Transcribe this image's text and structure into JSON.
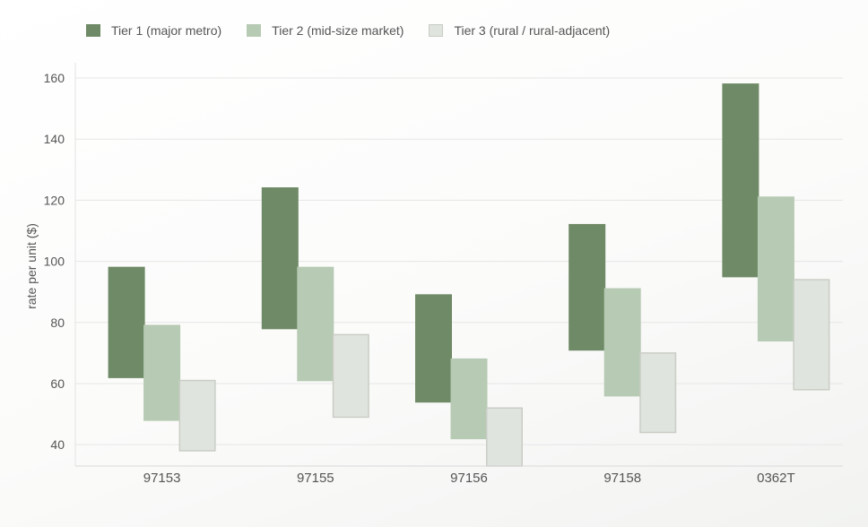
{
  "chart_data": {
    "type": "bar",
    "subtype": "floating-range",
    "categories": [
      "97153",
      "97155",
      "97156",
      "97158",
      "0362T"
    ],
    "series": [
      {
        "name": "Tier 1 (major metro)",
        "color": "#6f8a66",
        "stroke": "#6f8a66",
        "low": [
          62,
          78,
          54,
          71,
          95
        ],
        "high": [
          98,
          124,
          89,
          112,
          158
        ]
      },
      {
        "name": "Tier 2 (mid-size market)",
        "color": "#b7cab3",
        "stroke": "#b7cab3",
        "low": [
          48,
          61,
          42,
          56,
          74
        ],
        "high": [
          79,
          98,
          68,
          91,
          121
        ]
      },
      {
        "name": "Tier 3 (rural / rural-adjacent)",
        "color": "#e0e4de",
        "stroke": "#c9cdc5",
        "low": [
          38,
          49,
          33,
          44,
          58
        ],
        "high": [
          61,
          76,
          52,
          70,
          94
        ]
      }
    ],
    "ylabel": "rate per unit ($)",
    "xlabel": "",
    "ylim": [
      33,
      165
    ],
    "yticks": [
      40,
      60,
      80,
      100,
      120,
      140,
      160
    ],
    "grid": true,
    "legend": "top-left"
  }
}
